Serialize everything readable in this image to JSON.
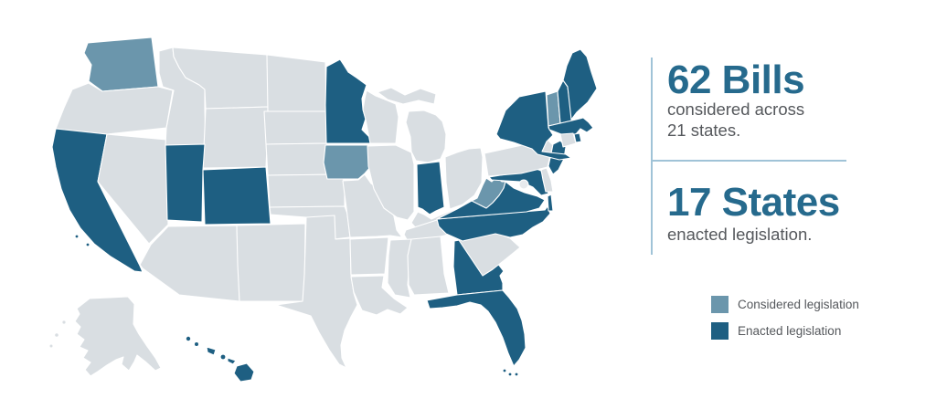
{
  "title": "State legislation map infographic",
  "stats": {
    "bills": {
      "headline": "62 Bills",
      "sub_line1": "considered across",
      "sub_line2": "21 states."
    },
    "states": {
      "headline": "17 States",
      "sub_line1": "enacted legislation."
    }
  },
  "legend": {
    "considered_label": "Considered legislation",
    "enacted_label": "Enacted legislation"
  },
  "colors": {
    "considered": "#6b96ac",
    "enacted": "#1e5f82",
    "default_state": "#d9dee2",
    "state_border": "#ffffff",
    "accent_line": "#a0c3d7",
    "headline_text": "#266a8d",
    "body_text": "#55585c",
    "dc_dot": "#e7eaed"
  },
  "chart_data": {
    "type": "choropleth-map",
    "title": "US states legislation status",
    "legend_position": "bottom-right",
    "categories": [
      "Considered legislation",
      "Enacted legislation"
    ],
    "bills_considered": 62,
    "states_considered_total": 21,
    "states_enacted_total": 17,
    "considered_states": [
      "WA",
      "IA",
      "WV",
      "VT"
    ],
    "enacted_states": [
      "CA",
      "UT",
      "CO",
      "MN",
      "IN",
      "GA",
      "FL",
      "HI",
      "VA",
      "NC",
      "MD",
      "NJ",
      "NY",
      "MA",
      "RI",
      "NH",
      "ME"
    ]
  }
}
